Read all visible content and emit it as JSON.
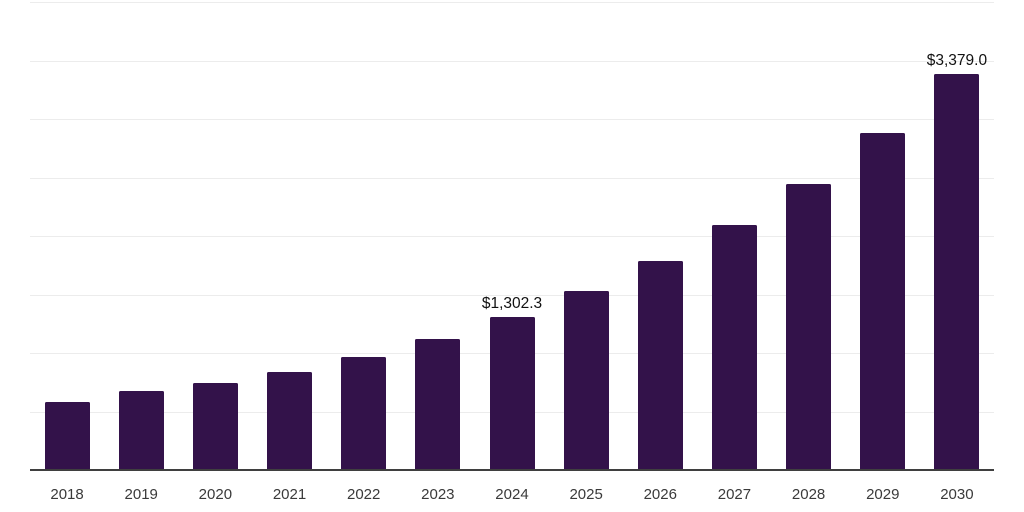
{
  "chart_data": {
    "type": "bar",
    "title": "",
    "xlabel": "",
    "ylabel": "",
    "categories": [
      "2018",
      "2019",
      "2020",
      "2021",
      "2022",
      "2023",
      "2024",
      "2025",
      "2026",
      "2027",
      "2028",
      "2029",
      "2030"
    ],
    "values": [
      570,
      665,
      736,
      827,
      961,
      1115,
      1302.3,
      1521,
      1780,
      2084,
      2440,
      2872,
      3379
    ],
    "value_labels": [
      "",
      "",
      "",
      "",
      "",
      "",
      "$1,302.3",
      "",
      "",
      "",
      "",
      "",
      "$3,379.0"
    ],
    "ylim": [
      0,
      4000
    ],
    "gridline_step": 500,
    "grid": true,
    "legend_position": "none",
    "colors": {
      "bar": "#33124A",
      "gridline": "#ececec",
      "axis_line": "#3f3f3f",
      "tick_label": "#3a3a3a",
      "value_label": "#111111"
    }
  }
}
